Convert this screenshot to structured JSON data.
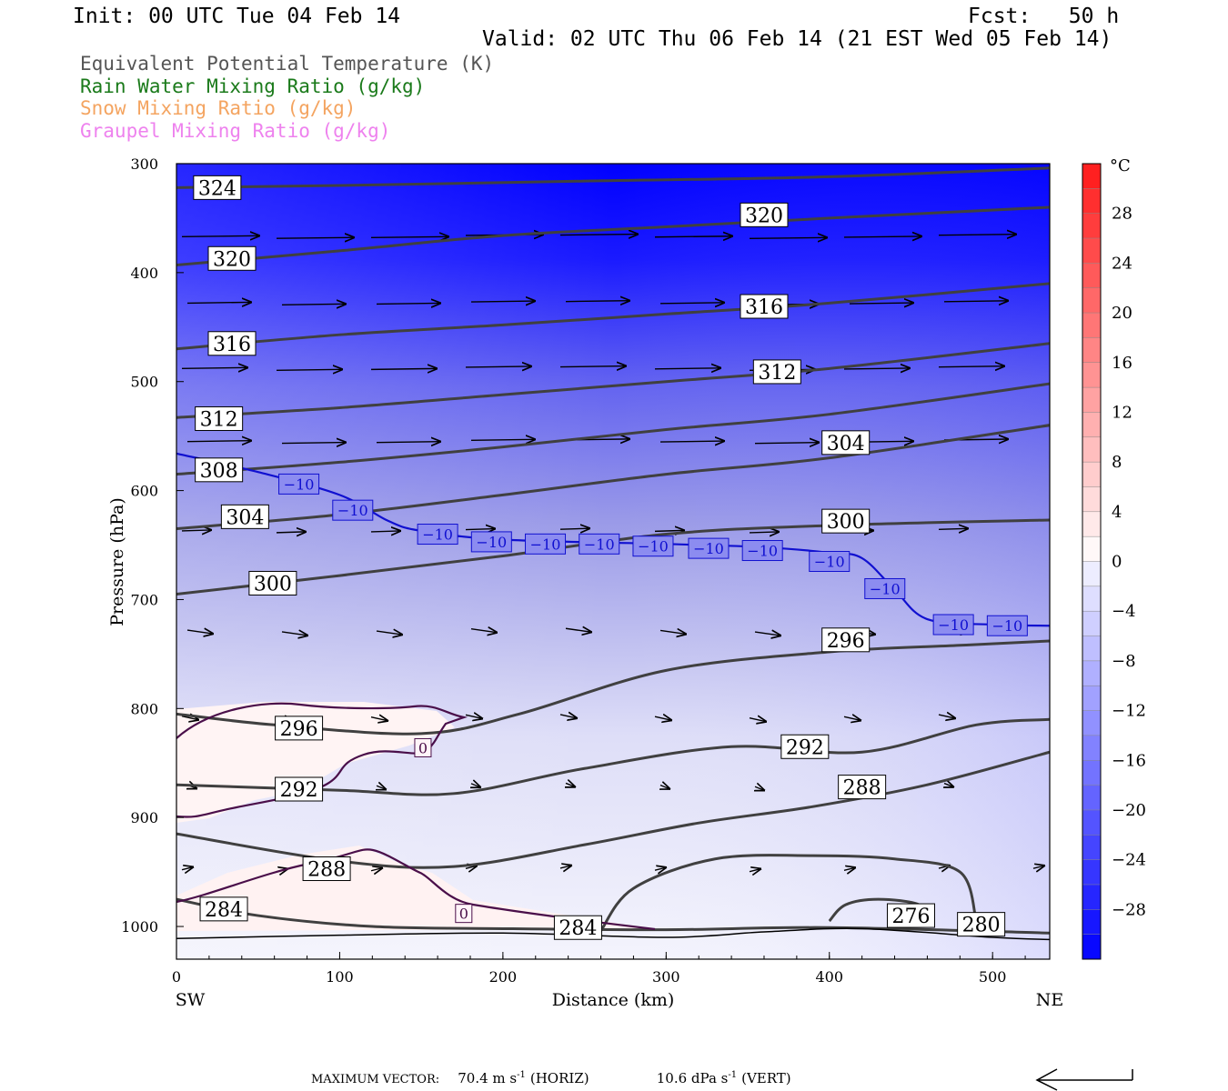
{
  "header": {
    "init": "Init: 00 UTC Tue 04 Feb 14",
    "fcst": "Fcst:   50 h",
    "valid": "Valid: 02 UTC Thu 06 Feb 14 (21 EST Wed 05 Feb 14)"
  },
  "legend": [
    {
      "label": "Equivalent Potential Temperature (K)",
      "color": "#555555"
    },
    {
      "label": "Rain Water Mixing Ratio (g/kg)",
      "color": "#1a7a1a"
    },
    {
      "label": "Snow Mixing Ratio (g/kg)",
      "color": "#f4a460"
    },
    {
      "label": "Graupel Mixing Ratio (g/kg)",
      "color": "#ee82ee"
    }
  ],
  "chart_data": {
    "type": "cross-section",
    "xlabel": "Distance (km)",
    "ylabel": "Pressure (hPa)",
    "xlim": [
      0,
      535
    ],
    "ylim": [
      1030,
      300
    ],
    "x_ticks": [
      "0",
      "100",
      "200",
      "300",
      "400",
      "500"
    ],
    "y_ticks": [
      "300",
      "400",
      "500",
      "600",
      "700",
      "800",
      "900",
      "1000"
    ],
    "x_end_labels": {
      "left": "SW",
      "right": "NE"
    },
    "colorbar": {
      "unit": "°C",
      "range": [
        -32,
        32
      ],
      "ticks": [
        "28",
        "24",
        "20",
        "16",
        "12",
        "8",
        "4",
        "0",
        "−4",
        "−8",
        "−12",
        "−16",
        "−20",
        "−24",
        "−28"
      ]
    },
    "theta_e_contours": [
      {
        "value": 324,
        "points": [
          [
            0,
            322
          ],
          [
            100,
            320
          ],
          [
            250,
            316
          ],
          [
            400,
            312
          ],
          [
            535,
            304
          ]
        ]
      },
      {
        "value": 320,
        "points": [
          [
            0,
            393
          ],
          [
            100,
            380
          ],
          [
            200,
            366
          ],
          [
            300,
            358
          ],
          [
            400,
            350
          ],
          [
            535,
            340
          ]
        ]
      },
      {
        "value": 316,
        "points": [
          [
            0,
            470
          ],
          [
            100,
            457
          ],
          [
            200,
            448
          ],
          [
            300,
            438
          ],
          [
            400,
            428
          ],
          [
            535,
            410
          ]
        ]
      },
      {
        "value": 312,
        "points": [
          [
            0,
            533
          ],
          [
            100,
            524
          ],
          [
            200,
            512
          ],
          [
            300,
            500
          ],
          [
            400,
            488
          ],
          [
            535,
            465
          ]
        ]
      },
      {
        "value": 308,
        "points": [
          [
            0,
            585
          ],
          [
            100,
            574
          ],
          [
            200,
            560
          ],
          [
            300,
            544
          ],
          [
            400,
            530
          ],
          [
            535,
            502
          ]
        ]
      },
      {
        "value": 304,
        "points": [
          [
            0,
            635
          ],
          [
            100,
            622
          ],
          [
            200,
            604
          ],
          [
            300,
            585
          ],
          [
            400,
            570
          ],
          [
            535,
            540
          ]
        ]
      },
      {
        "value": 300,
        "points": [
          [
            0,
            695
          ],
          [
            100,
            678
          ],
          [
            200,
            660
          ],
          [
            300,
            640
          ],
          [
            400,
            632
          ],
          [
            535,
            627
          ]
        ]
      },
      {
        "value": 296,
        "points": [
          [
            0,
            805
          ],
          [
            60,
            815
          ],
          [
            150,
            823
          ],
          [
            210,
            805
          ],
          [
            300,
            765
          ],
          [
            400,
            748
          ],
          [
            480,
            742
          ],
          [
            535,
            738
          ]
        ]
      },
      {
        "value": 292,
        "points": [
          [
            0,
            870
          ],
          [
            100,
            875
          ],
          [
            170,
            878
          ],
          [
            250,
            855
          ],
          [
            340,
            835
          ],
          [
            420,
            840
          ],
          [
            490,
            815
          ],
          [
            535,
            810
          ]
        ]
      },
      {
        "value": 288,
        "points": [
          [
            0,
            915
          ],
          [
            100,
            940
          ],
          [
            170,
            945
          ],
          [
            250,
            925
          ],
          [
            320,
            905
          ],
          [
            390,
            890
          ],
          [
            460,
            870
          ],
          [
            535,
            840
          ]
        ]
      },
      {
        "value": 284,
        "points": [
          [
            0,
            975
          ],
          [
            50,
            990
          ],
          [
            120,
            1000
          ],
          [
            200,
            1002
          ],
          [
            300,
            1003
          ],
          [
            400,
            1001
          ],
          [
            535,
            1006
          ]
        ]
      },
      {
        "value": 280,
        "points": [
          [
            260,
            1004
          ],
          [
            280,
            965
          ],
          [
            330,
            938
          ],
          [
            390,
            935
          ],
          [
            440,
            938
          ],
          [
            480,
            950
          ],
          [
            490,
            995
          ]
        ]
      },
      {
        "value": 276,
        "points": [
          [
            400,
            995
          ],
          [
            410,
            980
          ],
          [
            430,
            975
          ],
          [
            455,
            980
          ],
          [
            460,
            995
          ]
        ]
      }
    ],
    "theta_e_labels": [
      {
        "text": "324",
        "x": 25,
        "p": 322
      },
      {
        "text": "320",
        "x": 34,
        "p": 387
      },
      {
        "text": "320",
        "x": 360,
        "p": 347
      },
      {
        "text": "316",
        "x": 34,
        "p": 465
      },
      {
        "text": "316",
        "x": 360,
        "p": 431
      },
      {
        "text": "312",
        "x": 26,
        "p": 534
      },
      {
        "text": "312",
        "x": 368,
        "p": 491
      },
      {
        "text": "308",
        "x": 26,
        "p": 581
      },
      {
        "text": "304",
        "x": 42,
        "p": 624
      },
      {
        "text": "304",
        "x": 410,
        "p": 556
      },
      {
        "text": "300",
        "x": 59,
        "p": 685
      },
      {
        "text": "300",
        "x": 410,
        "p": 628
      },
      {
        "text": "296",
        "x": 75,
        "p": 818
      },
      {
        "text": "296",
        "x": 410,
        "p": 737
      },
      {
        "text": "292",
        "x": 75,
        "p": 874
      },
      {
        "text": "292",
        "x": 385,
        "p": 835
      },
      {
        "text": "288",
        "x": 92,
        "p": 947
      },
      {
        "text": "288",
        "x": 420,
        "p": 872
      },
      {
        "text": "284",
        "x": 29,
        "p": 984
      },
      {
        "text": "284",
        "x": 246,
        "p": 1001
      },
      {
        "text": "276",
        "x": 450,
        "p": 990
      },
      {
        "text": "280",
        "x": 493,
        "p": 998
      }
    ],
    "isotherm_minus10": {
      "value": -10,
      "points": [
        [
          0,
          566
        ],
        [
          50,
          583
        ],
        [
          100,
          604
        ],
        [
          130,
          628
        ],
        [
          150,
          637
        ],
        [
          200,
          645
        ],
        [
          300,
          649
        ],
        [
          360,
          652
        ],
        [
          400,
          657
        ],
        [
          420,
          662
        ],
        [
          440,
          691
        ],
        [
          460,
          718
        ],
        [
          500,
          723
        ],
        [
          535,
          724
        ]
      ],
      "labels": [
        {
          "x": 75,
          "p": 594
        },
        {
          "x": 108,
          "p": 618
        },
        {
          "x": 160,
          "p": 640
        },
        {
          "x": 193,
          "p": 647
        },
        {
          "x": 226,
          "p": 649
        },
        {
          "x": 259,
          "p": 649
        },
        {
          "x": 292,
          "p": 651
        },
        {
          "x": 326,
          "p": 653
        },
        {
          "x": 359,
          "p": 655
        },
        {
          "x": 400,
          "p": 665
        },
        {
          "x": 434,
          "p": 690
        },
        {
          "x": 476,
          "p": 723
        },
        {
          "x": 509,
          "p": 724
        }
      ]
    },
    "zero_contour_label": [
      {
        "text": "0",
        "x": 151,
        "p": 836
      },
      {
        "text": "0",
        "x": 176,
        "p": 988
      }
    ],
    "footer": {
      "prefix": "MAXIMUM VECTOR:",
      "horiz": "70.4 m s",
      "horiz_unit": "(HORIZ)",
      "vert": "10.6 dPa s",
      "vert_unit": "(VERT)",
      "sup": "-1"
    }
  }
}
